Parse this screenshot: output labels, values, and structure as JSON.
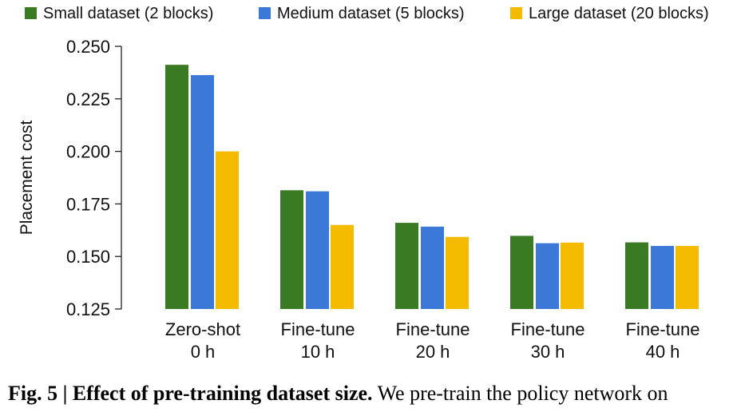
{
  "chart_data": {
    "type": "bar",
    "ylabel": "Placement cost",
    "ylim": [
      0.125,
      0.25
    ],
    "yticks": [
      0.125,
      0.15,
      0.175,
      0.2,
      0.225,
      0.25
    ],
    "ytick_labels": [
      "0.125",
      "0.150",
      "0.175",
      "0.200",
      "0.225",
      "0.250"
    ],
    "categories": [
      [
        "Zero-shot",
        "0 h"
      ],
      [
        "Fine-tune",
        "10 h"
      ],
      [
        "Fine-tune",
        "20 h"
      ],
      [
        "Fine-tune",
        "30 h"
      ],
      [
        "Fine-tune",
        "40 h"
      ]
    ],
    "series": [
      {
        "name": "Small dataset (2 blocks)",
        "color": "#3a7a23",
        "values": [
          0.2412,
          0.1815,
          0.166,
          0.1598,
          0.1567
        ]
      },
      {
        "name": "Medium dataset (5 blocks)",
        "color": "#3c78d8",
        "values": [
          0.2363,
          0.181,
          0.1642,
          0.1563,
          0.155
        ]
      },
      {
        "name": "Large dataset (20 blocks)",
        "color": "#f5bb00",
        "values": [
          0.2,
          0.165,
          0.1593,
          0.1566,
          0.155
        ]
      }
    ],
    "legend_position": "top",
    "grid": false
  },
  "caption": {
    "label": "Fig. 5 | Effect of pre-training dataset size.",
    "text": " We pre-train the policy network on"
  }
}
